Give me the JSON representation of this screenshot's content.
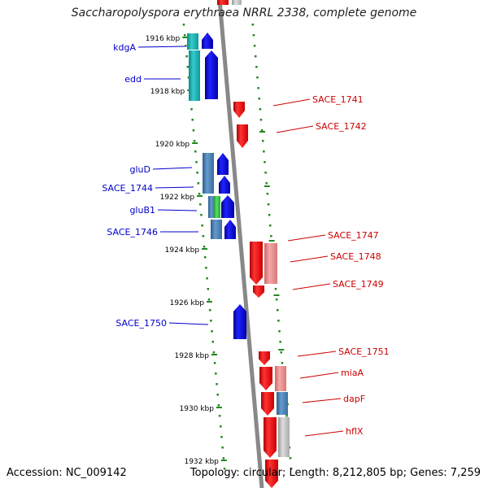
{
  "title": "Saccharopolyspora erythraea NRRL 2338, complete genome",
  "footer": {
    "accession": "Accession: NC_009142",
    "summary": "Topology: circular; Length: 8,212,805 bp; Genes: 7,259"
  },
  "colors": {
    "forward_gene": "#0000ee",
    "reverse_gene": "#ee0000",
    "forward_label": "#0000cc",
    "reverse_label": "#cc0000",
    "tick": "#228822",
    "backbone": "#888888",
    "cog_teal": "#22aaaa",
    "cog_steelblue": "#4a7fb0",
    "cog_green": "#33bb44",
    "cog_pink": "#e88a8a",
    "cog_gray": "#bbbbbb"
  },
  "diagram": {
    "kbp_ticks": [
      "1916 kbp",
      "1918 kbp",
      "1920 kbp",
      "1922 kbp",
      "1924 kbp",
      "1926 kbp",
      "1928 kbp",
      "1930 kbp",
      "1932 kbp"
    ],
    "forward_labels": [
      "kdgA",
      "edd",
      "gluD",
      "SACE_1744",
      "gluB1",
      "SACE_1746",
      "SACE_1750"
    ],
    "reverse_labels": [
      "SACE_1741",
      "SACE_1742",
      "SACE_1747",
      "SACE_1748",
      "SACE_1749",
      "SACE_1751",
      "miaA",
      "dapF",
      "hflX"
    ]
  }
}
